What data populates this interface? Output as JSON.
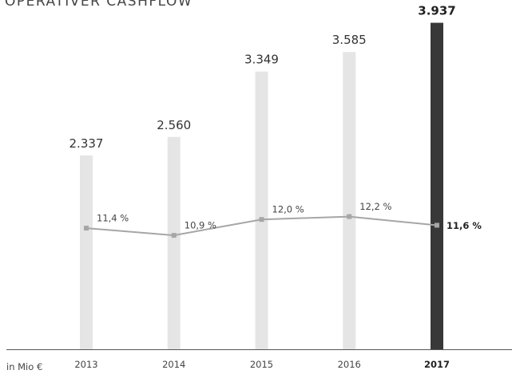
{
  "chart_data": {
    "type": "bar",
    "title": "OPERATIVER CASHFLOW",
    "unit_label": "in Mio €",
    "categories": [
      "2013",
      "2014",
      "2015",
      "2016",
      "2017"
    ],
    "ylim": [
      0,
      4000
    ],
    "y2lim": [
      3,
      26
    ],
    "series": [
      {
        "type": "bar",
        "colors": [
          "#e5e5e5",
          "#e5e5e5",
          "#e5e5e5",
          "#e5e5e5",
          "#383838"
        ],
        "values": [
          2337,
          2560,
          3349,
          3585,
          3937
        ],
        "value_labels": [
          "2.337",
          "2.560",
          "3.349",
          "3.585",
          "3.937"
        ]
      },
      {
        "type": "line",
        "axis": "y2",
        "color": "#a6a6a6",
        "values": [
          11.4,
          10.9,
          12.0,
          12.2,
          11.6
        ],
        "value_labels": [
          "11,4 %",
          "10,9 %",
          "12,0 %",
          "12,2 %",
          "11,6 %"
        ]
      }
    ]
  }
}
